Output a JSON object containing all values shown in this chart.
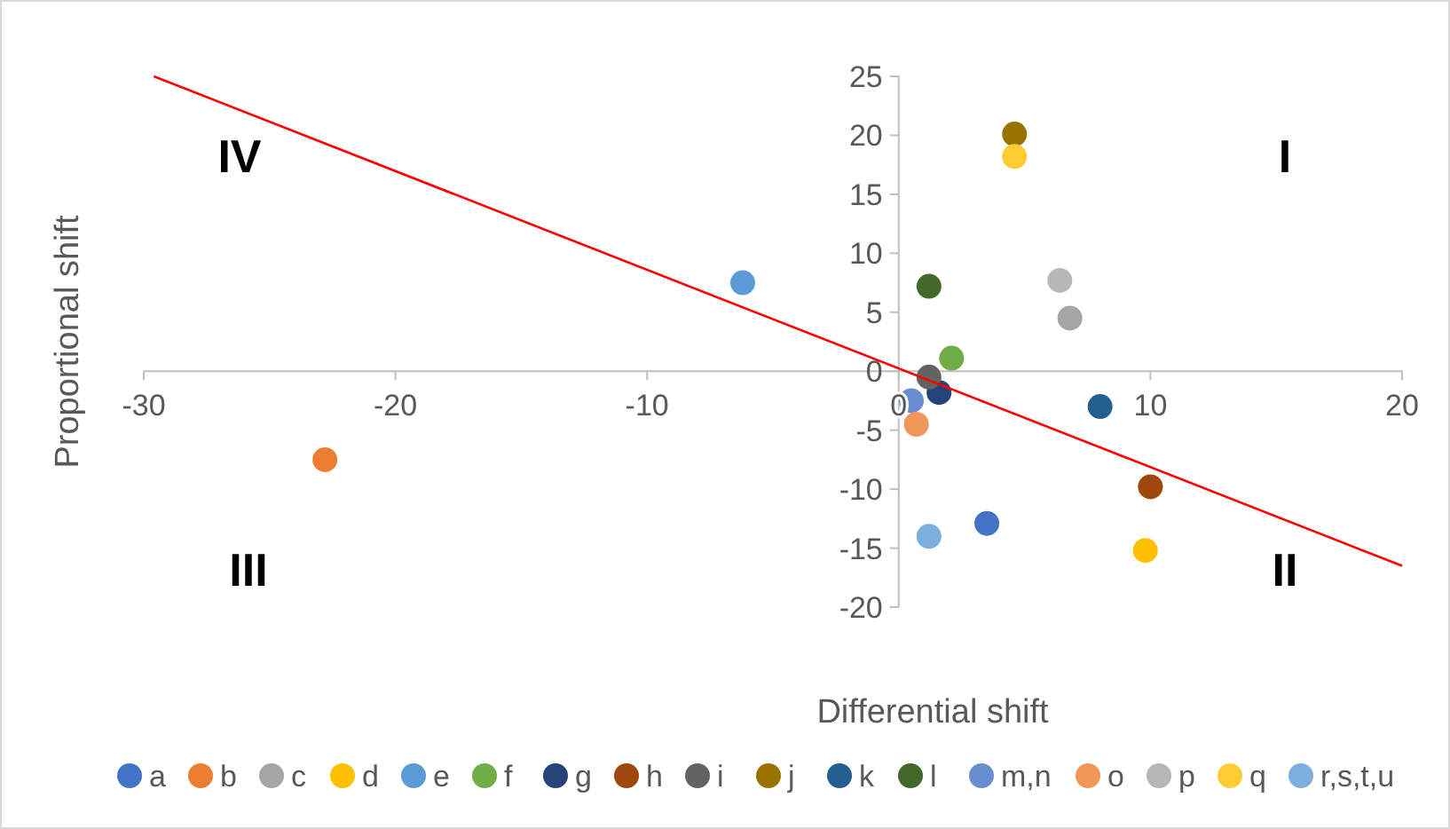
{
  "chart_data": {
    "type": "scatter",
    "xlabel": "Differential shift",
    "ylabel": "Proportional shift",
    "xlim": [
      -30,
      20
    ],
    "ylim": [
      -20,
      25
    ],
    "xticks": [
      -30,
      -20,
      -10,
      0,
      10,
      20
    ],
    "yticks": [
      -20,
      -15,
      -10,
      -5,
      0,
      5,
      10,
      15,
      20,
      25
    ],
    "legend": "bottom",
    "marker": "circle",
    "series": [
      {
        "name": "a",
        "color": "#4472c4",
        "x": [
          3.5
        ],
        "values": [
          -12.9
        ]
      },
      {
        "name": "b",
        "color": "#ed7d31",
        "x": [
          -22.8
        ],
        "values": [
          -7.5
        ]
      },
      {
        "name": "c",
        "color": "#a5a5a5",
        "x": [
          6.8
        ],
        "values": [
          4.5
        ]
      },
      {
        "name": "d",
        "color": "#ffc000",
        "x": [
          9.8
        ],
        "values": [
          -15.2
        ]
      },
      {
        "name": "e",
        "color": "#5b9bd5",
        "x": [
          -6.2
        ],
        "values": [
          7.5
        ]
      },
      {
        "name": "f",
        "color": "#70ad47",
        "x": [
          2.1
        ],
        "values": [
          1.1
        ]
      },
      {
        "name": "g",
        "color": "#264478",
        "x": [
          1.6
        ],
        "values": [
          -1.8
        ]
      },
      {
        "name": "h",
        "color": "#9e480e",
        "x": [
          10
        ],
        "values": [
          -9.8
        ]
      },
      {
        "name": "i",
        "color": "#636363",
        "x": [
          1.2
        ],
        "values": [
          -0.5
        ]
      },
      {
        "name": "j",
        "color": "#997300",
        "x": [
          4.6
        ],
        "values": [
          20.1
        ]
      },
      {
        "name": "k",
        "color": "#255e91",
        "x": [
          8
        ],
        "values": [
          -3
        ]
      },
      {
        "name": "l",
        "color": "#43682b",
        "x": [
          1.2
        ],
        "values": [
          7.2
        ]
      },
      {
        "name": "m,n",
        "color": "#698ed0",
        "x": [
          0.5
        ],
        "values": [
          -2.5
        ]
      },
      {
        "name": "o",
        "color": "#f1975a",
        "x": [
          0.7
        ],
        "values": [
          -4.5
        ]
      },
      {
        "name": "p",
        "color": "#b7b7b7",
        "x": [
          6.4
        ],
        "values": [
          7.7
        ]
      },
      {
        "name": "q",
        "color": "#ffcd33",
        "x": [
          4.6
        ],
        "values": [
          18.2
        ]
      },
      {
        "name": "r,s,t,u",
        "color": "#7cafdd",
        "x": [
          1.2
        ],
        "values": [
          -14
        ]
      },
      {
        "type": "line",
        "color": "#ff0000",
        "x": [
          -29.6,
          20
        ],
        "values": [
          25,
          -16.5
        ],
        "marker": "none"
      }
    ],
    "annotations": [
      "I",
      "II",
      "III",
      "IV"
    ]
  }
}
